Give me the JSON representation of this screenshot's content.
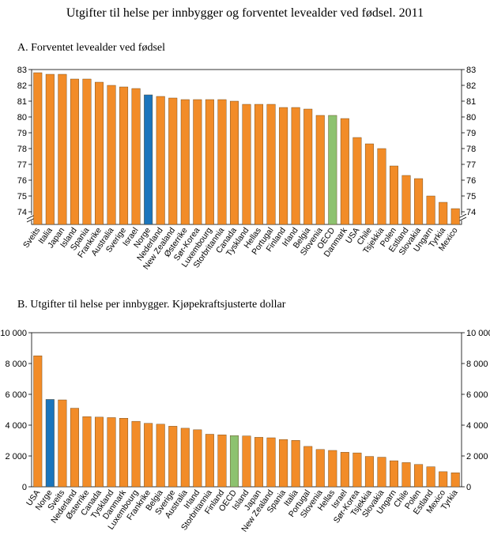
{
  "title": "Utgifter til helse per innbygger og forventet levealder ved fødsel. 2011",
  "colors": {
    "default": "#F28C28",
    "norway": "#1B75BC",
    "oecd": "#8DC26F",
    "stroke": "#5a3a10"
  },
  "chart_data": [
    {
      "type": "bar",
      "title": "A.  Forventet levealder ved fødsel",
      "ylim": [
        74,
        83
      ],
      "y_break": true,
      "yticks": [
        "74",
        "75",
        "76",
        "77",
        "78",
        "79",
        "80",
        "81",
        "82",
        "83"
      ],
      "grid": false,
      "categories": [
        "Sveits",
        "Italia",
        "Japan",
        "Island",
        "Spania",
        "Frankrike",
        "Australia",
        "Sverige",
        "Israel",
        "Norge",
        "Nederland",
        "New Zealand",
        "Østerrike",
        "Sør-Korea",
        "Luxembourg",
        "Storbritannia",
        "Canada",
        "Tyskland",
        "Hellas",
        "Portugal",
        "Finland",
        "Irland",
        "Belgia",
        "Slovenia",
        "OECD",
        "Danmark",
        "USA",
        "Chile",
        "Tsjekkia",
        "Polen",
        "Estland",
        "Slovakia",
        "Ungarn",
        "Tyrkia",
        "Mexico"
      ],
      "values": [
        82.8,
        82.7,
        82.7,
        82.4,
        82.4,
        82.2,
        82.0,
        81.9,
        81.8,
        81.4,
        81.3,
        81.2,
        81.1,
        81.1,
        81.1,
        81.1,
        81.0,
        80.8,
        80.8,
        80.8,
        80.6,
        80.6,
        80.5,
        80.1,
        80.1,
        79.9,
        78.7,
        78.3,
        78.0,
        76.9,
        76.3,
        76.1,
        75.0,
        74.6,
        74.2
      ],
      "highlights": {
        "Norge": "norway",
        "OECD": "oecd"
      }
    },
    {
      "type": "bar",
      "title": "B.  Utgifter til helse per innbygger. Kjøpekraftsjusterte dollar",
      "ylim": [
        0,
        10000
      ],
      "yticks": [
        "0",
        "2 000",
        "4 000",
        "6 000",
        "8 000",
        "10 000"
      ],
      "grid": false,
      "categories": [
        "USA",
        "Norge",
        "Sveits",
        "Nederland",
        "Østerrike",
        "Canada",
        "Tyskland",
        "Danmark",
        "Luxembourg",
        "Frankrike",
        "Belgia",
        "Sverige",
        "Australia",
        "Irland",
        "Storbritannia",
        "Finland",
        "OECD",
        "Island",
        "Japan",
        "New Zealand",
        "Spania",
        "Italia",
        "Portugal",
        "Slovenia",
        "Hellas",
        "Israel",
        "Sør-Korea",
        "Tsjekkia",
        "Slovakia",
        "Ungarn",
        "Chile",
        "Polen",
        "Estland",
        "Mexico",
        "Tyrkia"
      ],
      "values": [
        8500,
        5670,
        5640,
        5100,
        4550,
        4520,
        4490,
        4450,
        4250,
        4120,
        4060,
        3930,
        3800,
        3700,
        3410,
        3370,
        3320,
        3300,
        3210,
        3180,
        3070,
        3010,
        2620,
        2420,
        2360,
        2240,
        2200,
        1970,
        1920,
        1690,
        1570,
        1450,
        1300,
        980,
        910
      ],
      "highlights": {
        "Norge": "norway",
        "OECD": "oecd"
      }
    }
  ]
}
